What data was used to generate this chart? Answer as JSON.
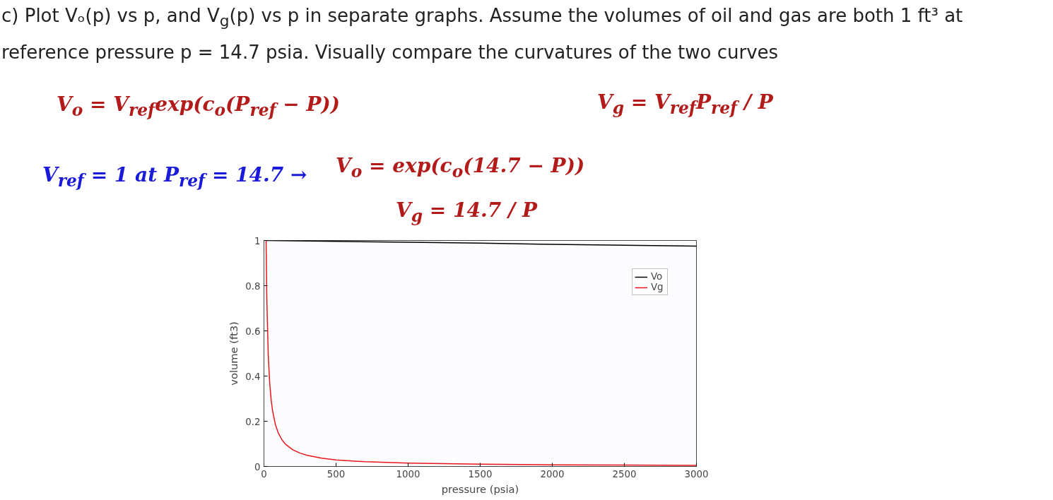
{
  "chart_data": {
    "type": "line",
    "title": "c) Plot Vₒ(p) vs p, and V$_{g}$(p) vs p in separate graphs. Assume the volumes of oil and gas are both 1 ft³ at reference pressure p = 14.7 psia. Visually compare the curvatures of the two curves",
    "annotations": [
      "V$_{o}$ = V$_{ref}$exp(c$_{o}$(P$_{ref}$ − P))",
      "V$_{g}$ = V$_{ref}$P$_{ref}$ / P",
      "V$_{ref}$ = 1 at P$_{ref}$ = 14.7 →",
      "V$_{o}$ = exp(c$_{o}$(14.7 − P))",
      "V$_{g}$ = 14.7 / P"
    ],
    "xlabel": "pressure (psia)",
    "ylabel": "volume (ft3)",
    "series": [
      {
        "name": "Vo",
        "color": "#000000",
        "x": [
          14.7,
          500,
          1000,
          1500,
          2000,
          2500,
          3000
        ],
        "values": [
          1,
          0.996,
          0.992,
          0.988,
          0.983,
          0.979,
          0.975
        ]
      },
      {
        "name": "Vg",
        "color": "#e8161b",
        "x": [
          14.7,
          20,
          30,
          40,
          50,
          60,
          80,
          100,
          125,
          150,
          200,
          250,
          300,
          400,
          500,
          700,
          1000,
          1500,
          2000,
          2500,
          3000
        ],
        "values": [
          1,
          0.735,
          0.49,
          0.368,
          0.294,
          0.245,
          0.184,
          0.147,
          0.118,
          0.098,
          0.074,
          0.059,
          0.049,
          0.037,
          0.029,
          0.021,
          0.015,
          0.01,
          0.007,
          0.006,
          0.005
        ]
      }
    ],
    "xlim": [
      0,
      3000
    ],
    "xticks": [
      0,
      500,
      1000,
      1500,
      2000,
      2500,
      3000
    ],
    "ylim": [
      0,
      1
    ],
    "yticks": [
      0,
      0.2,
      0.4,
      0.6,
      0.8,
      1
    ],
    "grid": false,
    "legend": "top right",
    "marker": "none",
    "line_style": "solid"
  }
}
